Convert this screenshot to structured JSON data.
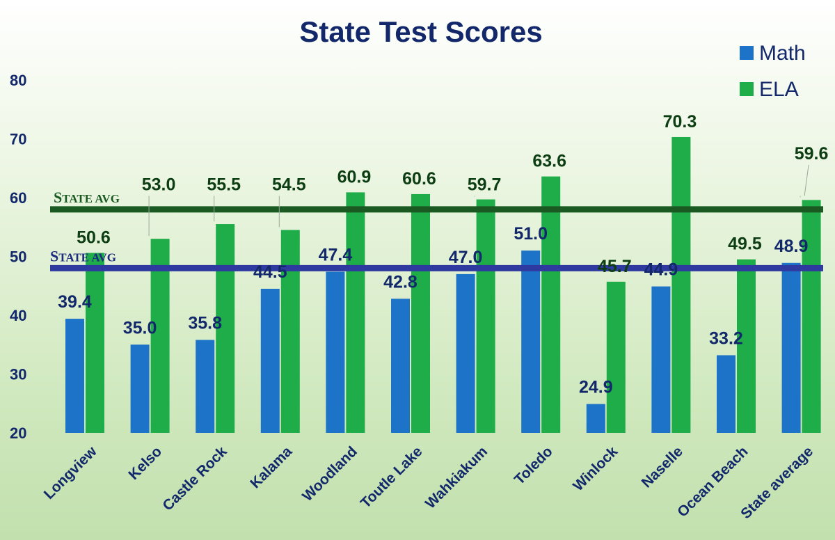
{
  "chart_data": {
    "type": "bar",
    "title": "State Test Scores",
    "categories": [
      "Longview",
      "Kelso",
      "Castle Rock",
      "Kalama",
      "Woodland",
      "Toutle Lake",
      "Wahkiakum",
      "Toledo",
      "Winlock",
      "Naselle",
      "Ocean Beach",
      "State average"
    ],
    "series": [
      {
        "name": "Math",
        "color": "#1d73c8",
        "values": [
          39.4,
          35.0,
          35.8,
          44.5,
          47.4,
          42.8,
          47.0,
          51.0,
          24.9,
          44.9,
          33.2,
          48.9
        ]
      },
      {
        "name": "ELA",
        "color": "#1fad4a",
        "values": [
          50.6,
          53.0,
          55.5,
          54.5,
          60.9,
          60.6,
          59.7,
          63.6,
          45.7,
          70.3,
          49.5,
          59.6
        ]
      }
    ],
    "ylim": [
      20,
      80
    ],
    "yticks": [
      20,
      30,
      40,
      50,
      60,
      70,
      80
    ],
    "xlabel": "",
    "ylabel": "",
    "grid": false,
    "legend": "top-right",
    "reference_lines": [
      {
        "label_first": "S",
        "label_rest": "TATE AVG",
        "value": 58.0,
        "color": "#1a5a22",
        "text_color": "#1a5a22"
      },
      {
        "label_first": "S",
        "label_rest": "TATE AVG",
        "value": 48.0,
        "color": "#2f3aa0",
        "text_color": "#1c2a80"
      }
    ]
  }
}
